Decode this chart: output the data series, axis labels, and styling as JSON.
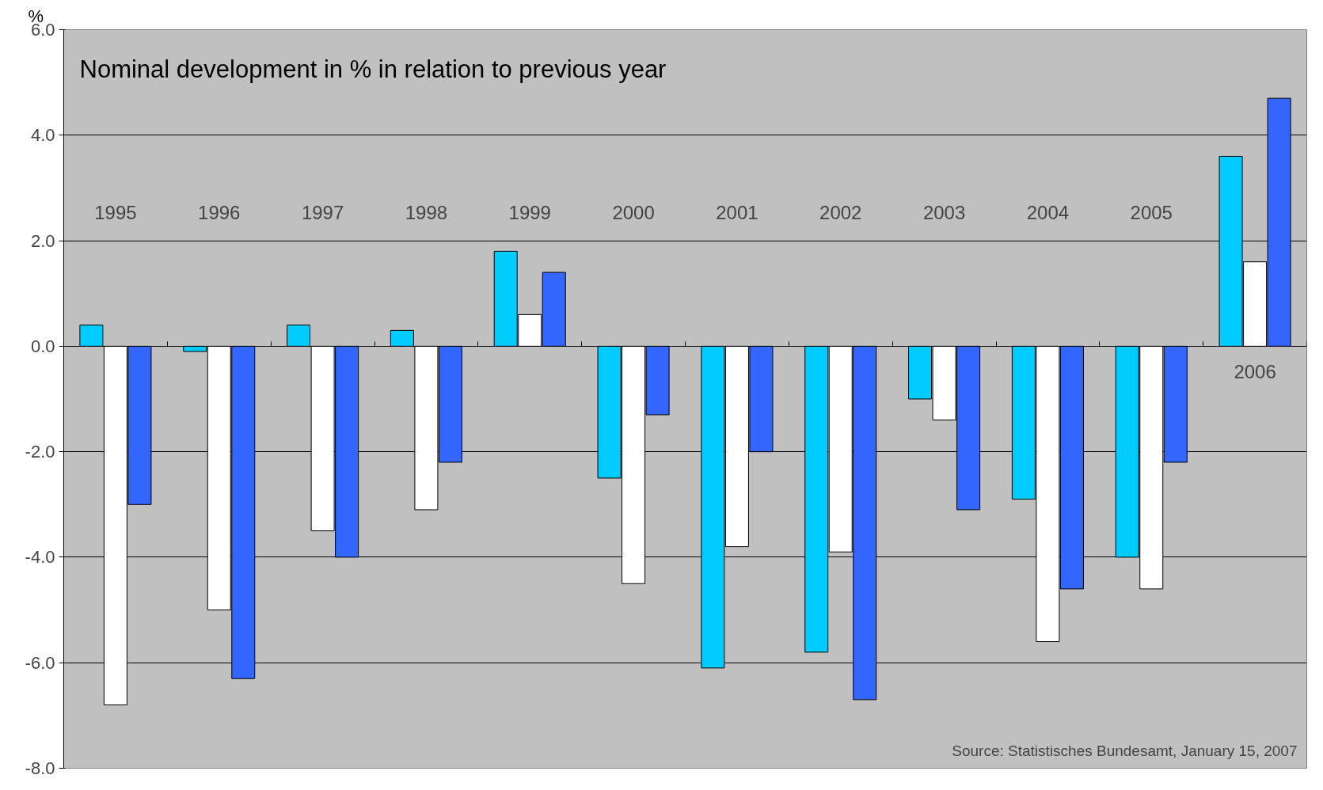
{
  "chart_data": {
    "type": "bar",
    "title": "Nominal development in % in relation to previous year",
    "ylabel": "%",
    "categories": [
      "1995",
      "1996",
      "1997",
      "1998",
      "1999",
      "2000",
      "2001",
      "2002",
      "2003",
      "2004",
      "2005",
      "2006"
    ],
    "series": [
      {
        "color": "#00ccff",
        "values": [
          0.4,
          -0.1,
          0.4,
          0.3,
          1.8,
          -2.5,
          -6.1,
          -5.8,
          -1.0,
          -2.9,
          -4.0,
          3.6
        ]
      },
      {
        "color": "#ffffff",
        "values": [
          -6.8,
          -5.0,
          -3.5,
          -3.1,
          0.6,
          -4.5,
          -3.8,
          -3.9,
          -1.4,
          -5.6,
          -4.6,
          1.6
        ]
      },
      {
        "color": "#3366ff",
        "values": [
          -3.0,
          -6.3,
          -4.0,
          -2.2,
          1.4,
          -1.3,
          -2.0,
          -6.7,
          -3.1,
          -4.6,
          -2.2,
          4.7
        ]
      }
    ],
    "ylim": [
      -8.0,
      6.0
    ],
    "yticks": [
      {
        "value": -8,
        "label": "-8.0"
      },
      {
        "value": -6,
        "label": "-6.0"
      },
      {
        "value": -4,
        "label": "-4.0"
      },
      {
        "value": -2,
        "label": "-2.0"
      },
      {
        "value": 0,
        "label": "0.0"
      },
      {
        "value": 2,
        "label": "2.0"
      },
      {
        "value": 4,
        "label": "4.0"
      },
      {
        "value": 6,
        "label": "6.0"
      }
    ],
    "grid": "y",
    "tick_labels": "y",
    "annotations": [
      "Source: Statistisches Bundesamt, January 15, 2007"
    ]
  }
}
